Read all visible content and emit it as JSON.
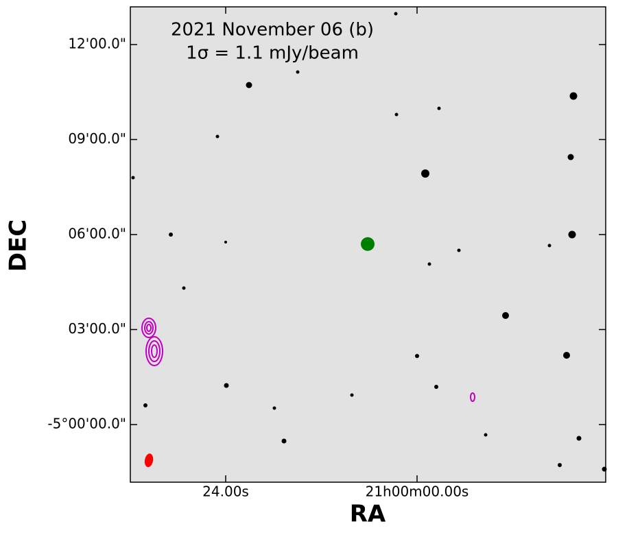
{
  "chart_data": {
    "type": "image",
    "title": "2021 November 06 (b)",
    "subtitle": "1σ = 1.1 mJy/beam",
    "xlabel": "RA",
    "ylabel": "DEC",
    "xlim": [
      35.96,
      -23.66
    ],
    "ylim": [
      -1.82,
      13.19
    ],
    "xticks": [
      {
        "value": 24,
        "label": "24.00s"
      },
      {
        "value": 0,
        "label": "21h00m00.00s"
      }
    ],
    "yticks": [
      {
        "value": 12,
        "label": "12'00.0\""
      },
      {
        "value": 9,
        "label": "09'00.0\""
      },
      {
        "value": 6,
        "label": "06'00.0\""
      },
      {
        "value": 3,
        "label": "03'00.0\""
      },
      {
        "value": 0,
        "label": "-5°00'00.0\""
      }
    ],
    "marker": {
      "x": 6.19,
      "y": 5.7,
      "color": "#008000"
    },
    "beam": {
      "x": 33.63,
      "y": -1.13,
      "color": "#ff0000"
    }
  }
}
